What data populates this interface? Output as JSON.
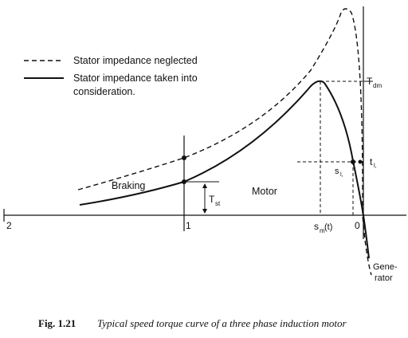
{
  "legend": {
    "neglected": "Stator impedance neglected",
    "considered_line1": "Stator impedance taken into",
    "considered_line2": "consideration."
  },
  "regions": {
    "braking": "Braking",
    "motor": "Motor",
    "generator_line1": "Gene-",
    "generator_line2": "rator"
  },
  "ticks": {
    "two": "2",
    "one": "1",
    "zero": "0"
  },
  "markers": {
    "tdm": "T",
    "tdm_sub": "dm",
    "tst": "T",
    "tst_sub": "st",
    "sm": "s",
    "sm_sub": "m",
    "sm_paren": "(t)",
    "sl": "s",
    "sl_sub": "l,",
    "tl": "t",
    "tl_sub": "l,"
  },
  "caption": {
    "label": "Fig. 1.21",
    "text": "Typical speed torque curve of a three phase induction motor"
  }
}
